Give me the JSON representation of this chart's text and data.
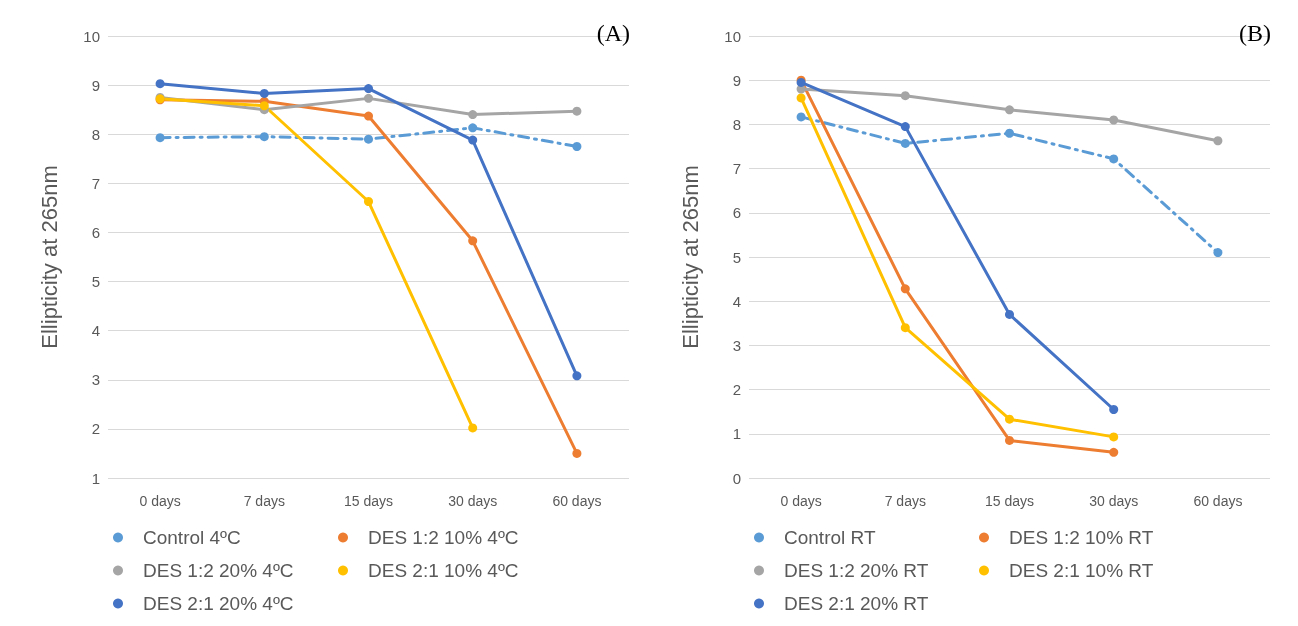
{
  "chart_data": [
    {
      "type": "line",
      "title": "(A)",
      "ylabel": "Ellipticity at 265nm",
      "categories": [
        "0 days",
        "7 days",
        "15 days",
        "30 days",
        "60 days"
      ],
      "ylim": [
        1,
        10
      ],
      "yticks": [
        1,
        2,
        3,
        4,
        5,
        6,
        7,
        8,
        9,
        10
      ],
      "grid": "y",
      "legend": "bottom",
      "marker": "circle",
      "series": [
        {
          "name": "Control 4ºC",
          "color": "#5b9bd5",
          "line_style": "dashed",
          "values": [
            7.93,
            7.95,
            7.9,
            8.13,
            7.75
          ]
        },
        {
          "name": "DES 1:2 10% 4ºC",
          "color": "#ed7d31",
          "values": [
            8.7,
            8.67,
            8.37,
            5.83,
            1.5
          ]
        },
        {
          "name": "DES 1:2 20% 4ºC",
          "color": "#a5a5a5",
          "values": [
            8.75,
            8.5,
            8.73,
            8.4,
            8.47
          ]
        },
        {
          "name": "DES 2:1 10% 4ºC",
          "color": "#ffc000",
          "values": [
            8.72,
            8.58,
            6.63,
            2.02,
            null
          ]
        },
        {
          "name": "DES 2:1 20% 4ºC",
          "color": "#4472c4",
          "values": [
            9.03,
            8.83,
            8.93,
            7.88,
            3.08
          ]
        }
      ]
    },
    {
      "type": "line",
      "title": "(B)",
      "ylabel": "Ellipticity at 265nm",
      "categories": [
        "0 days",
        "7 days",
        "15 days",
        "30 days",
        "60 days"
      ],
      "ylim": [
        0,
        10
      ],
      "yticks": [
        0,
        1,
        2,
        3,
        4,
        5,
        6,
        7,
        8,
        9,
        10
      ],
      "grid": "y",
      "legend": "bottom",
      "marker": "circle",
      "series": [
        {
          "name": "Control RT",
          "color": "#5b9bd5",
          "line_style": "dashed",
          "values": [
            8.17,
            7.57,
            7.8,
            7.22,
            5.1
          ]
        },
        {
          "name": "DES 1:2 10% RT",
          "color": "#ed7d31",
          "values": [
            9.0,
            4.28,
            0.85,
            0.58,
            null
          ]
        },
        {
          "name": "DES 1:2 20% RT",
          "color": "#a5a5a5",
          "values": [
            8.8,
            8.65,
            8.33,
            8.1,
            7.63
          ]
        },
        {
          "name": "DES 2:1 10% RT",
          "color": "#ffc000",
          "values": [
            8.6,
            3.4,
            1.33,
            0.93,
            null
          ]
        },
        {
          "name": "DES 2:1 20% RT",
          "color": "#4472c4",
          "values": [
            8.95,
            7.95,
            3.7,
            1.55,
            null
          ]
        }
      ]
    }
  ]
}
